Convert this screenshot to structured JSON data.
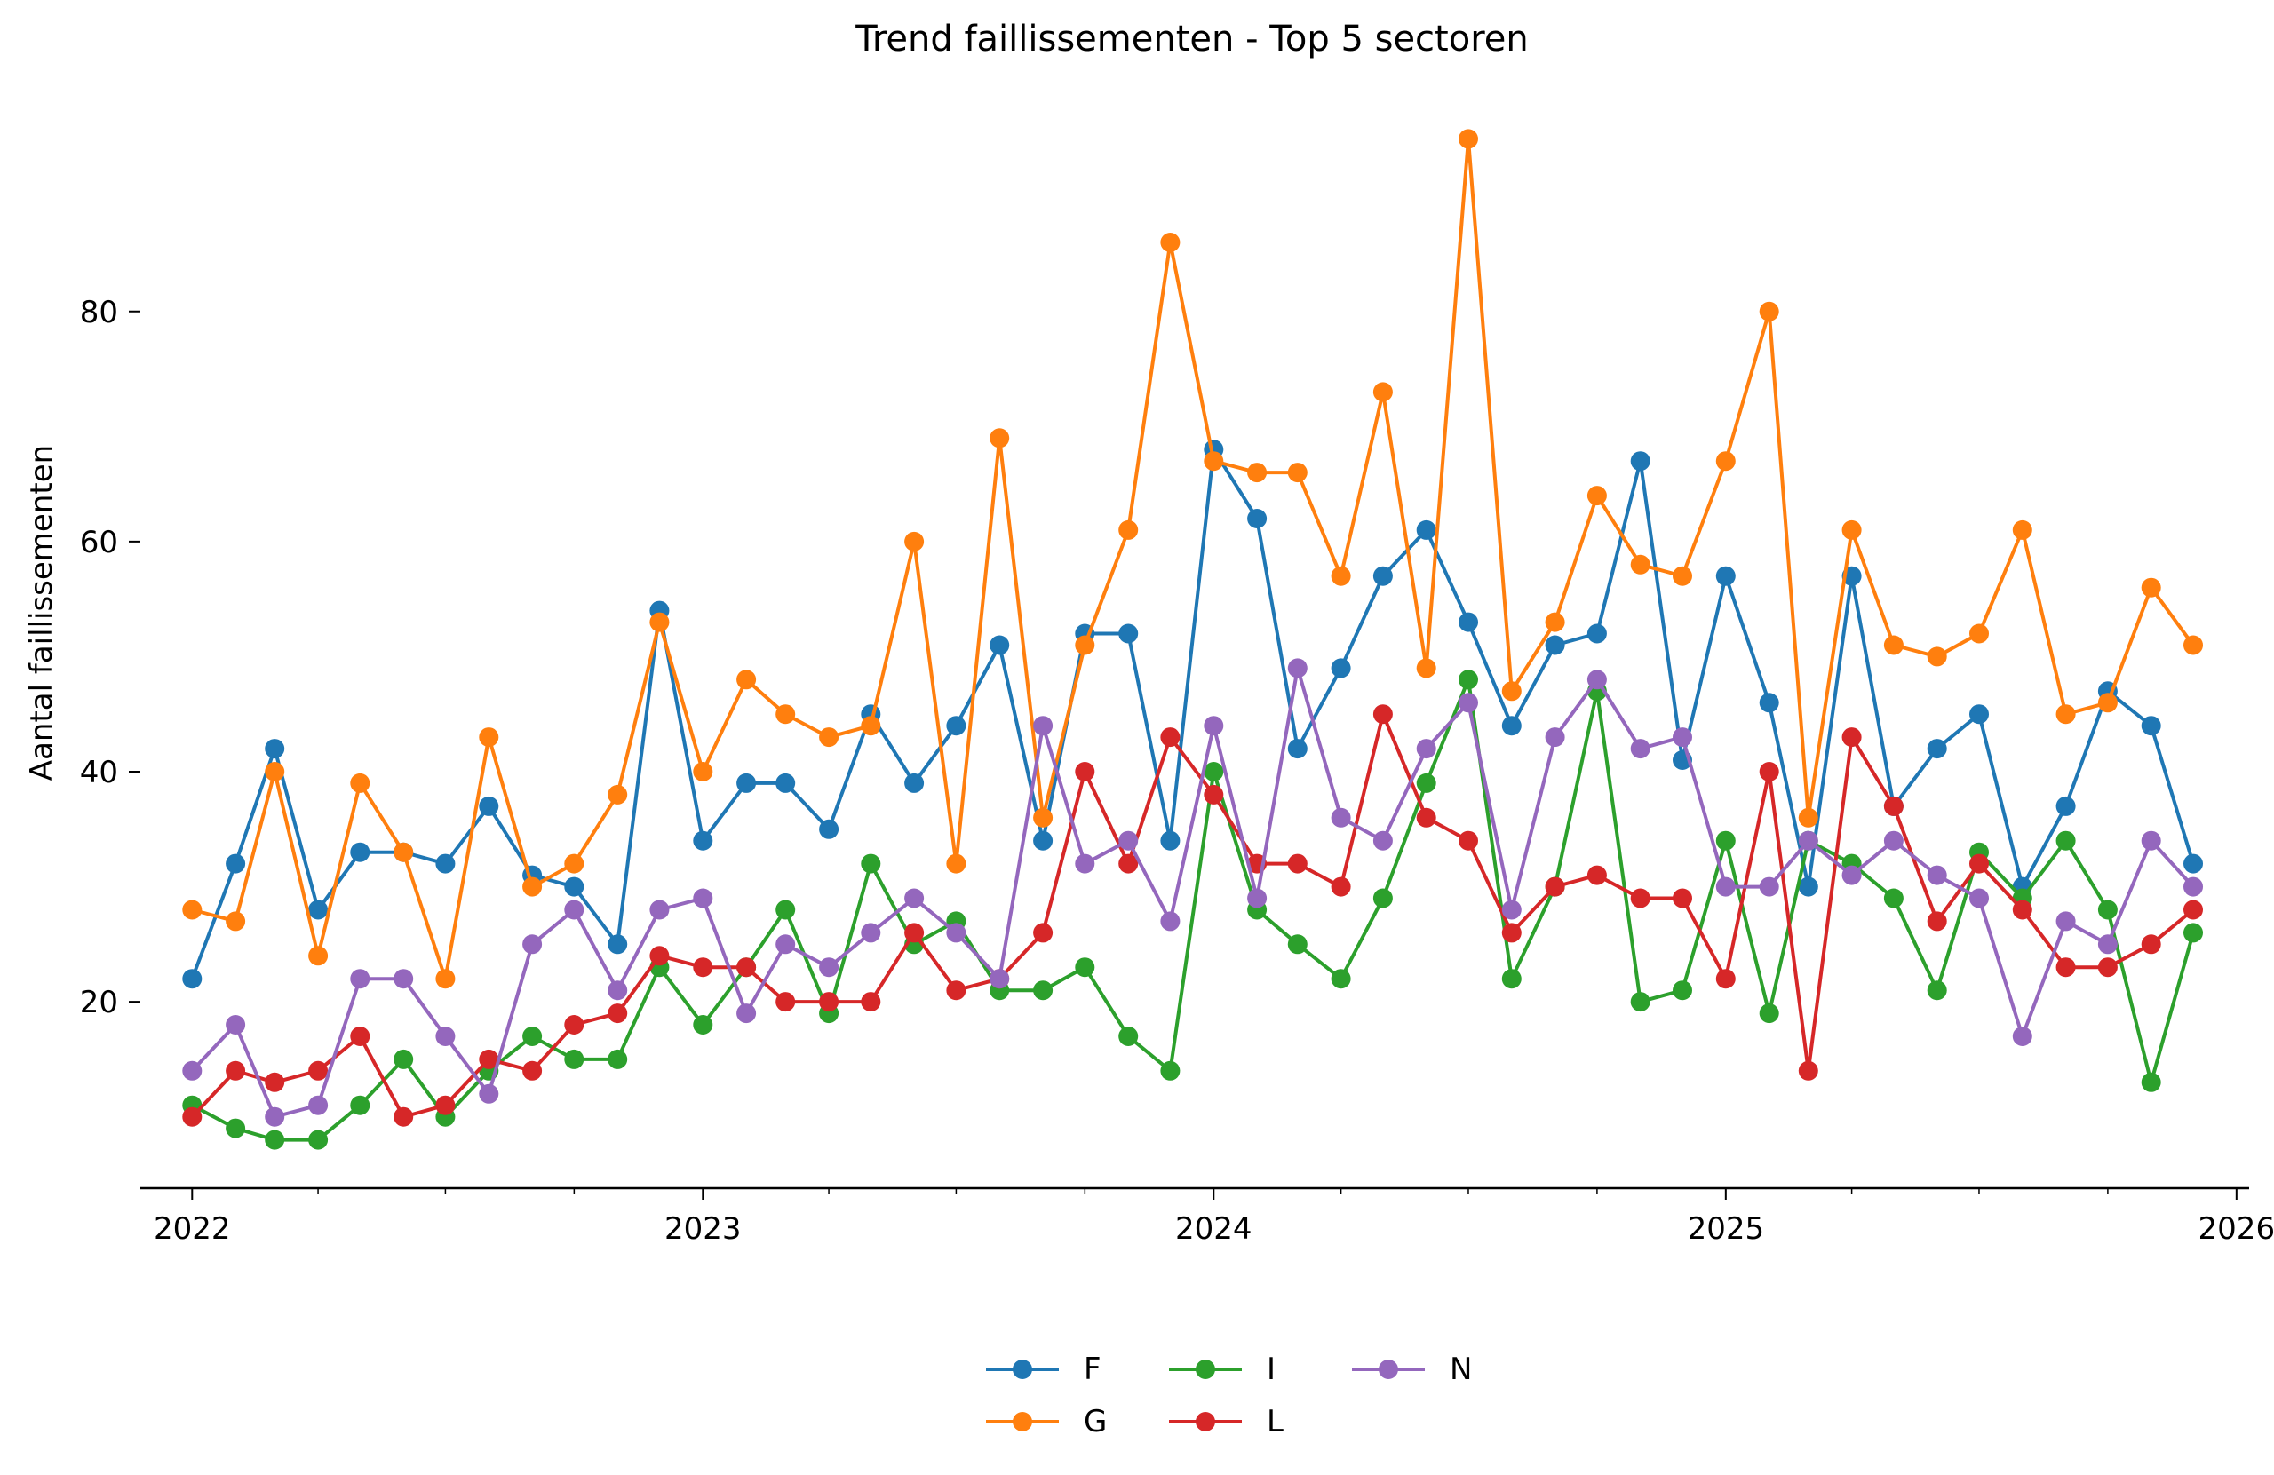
{
  "chart_data": {
    "type": "line",
    "title": "Trend faillissementen - Top 5 sectoren",
    "xlabel": "",
    "ylabel": "Aantal faillissementen",
    "x_start": "2022-01",
    "x_step": "month",
    "xlim": [
      "2021-11-25",
      "2026-01-10"
    ],
    "ylim": [
      3.8,
      99.2
    ],
    "x_ticks": [
      "2022",
      "2023",
      "2024",
      "2025",
      "2026"
    ],
    "y_ticks": [
      20,
      40,
      60,
      80
    ],
    "grid": false,
    "legend_position": "bottom-center",
    "series": [
      {
        "name": "F",
        "color": "#1f77b4",
        "values": [
          22,
          32,
          42,
          28,
          33,
          33,
          32,
          37,
          31,
          30,
          25,
          54,
          34,
          39,
          39,
          35,
          45,
          39,
          44,
          51,
          34,
          52,
          52,
          34,
          68,
          62,
          42,
          49,
          57,
          61,
          53,
          44,
          51,
          52,
          67,
          41,
          57,
          46,
          30,
          57,
          37,
          42,
          45,
          30,
          37,
          47,
          44,
          32
        ]
      },
      {
        "name": "G",
        "color": "#ff7f0e",
        "values": [
          28,
          27,
          40,
          24,
          39,
          33,
          22,
          43,
          30,
          32,
          38,
          53,
          40,
          48,
          45,
          43,
          44,
          60,
          32,
          69,
          36,
          51,
          61,
          86,
          67,
          66,
          66,
          57,
          73,
          49,
          95,
          47,
          53,
          64,
          58,
          57,
          67,
          80,
          36,
          61,
          51,
          50,
          52,
          61,
          45,
          46,
          56,
          51
        ]
      },
      {
        "name": "I",
        "color": "#2ca02c",
        "values": [
          11,
          9,
          8,
          8,
          11,
          15,
          10,
          14,
          17,
          15,
          15,
          23,
          18,
          23,
          28,
          19,
          32,
          25,
          27,
          21,
          21,
          23,
          17,
          14,
          40,
          28,
          25,
          22,
          29,
          39,
          48,
          22,
          30,
          47,
          20,
          21,
          34,
          19,
          34,
          32,
          29,
          21,
          33,
          29,
          34,
          28,
          13,
          26
        ]
      },
      {
        "name": "L",
        "color": "#d62728",
        "values": [
          10,
          14,
          13,
          14,
          17,
          10,
          11,
          15,
          14,
          18,
          19,
          24,
          23,
          23,
          20,
          20,
          20,
          26,
          21,
          22,
          26,
          40,
          32,
          43,
          38,
          32,
          32,
          30,
          45,
          36,
          34,
          26,
          30,
          31,
          29,
          29,
          22,
          40,
          14,
          43,
          37,
          27,
          32,
          28,
          23,
          23,
          25,
          28
        ]
      },
      {
        "name": "N",
        "color": "#9467bd",
        "values": [
          14,
          18,
          10,
          11,
          22,
          22,
          17,
          12,
          25,
          28,
          21,
          28,
          29,
          19,
          25,
          23,
          26,
          29,
          26,
          22,
          44,
          32,
          34,
          27,
          44,
          29,
          49,
          36,
          34,
          42,
          46,
          28,
          43,
          48,
          42,
          43,
          30,
          30,
          34,
          31,
          34,
          31,
          29,
          17,
          27,
          25,
          34,
          30
        ]
      }
    ]
  }
}
